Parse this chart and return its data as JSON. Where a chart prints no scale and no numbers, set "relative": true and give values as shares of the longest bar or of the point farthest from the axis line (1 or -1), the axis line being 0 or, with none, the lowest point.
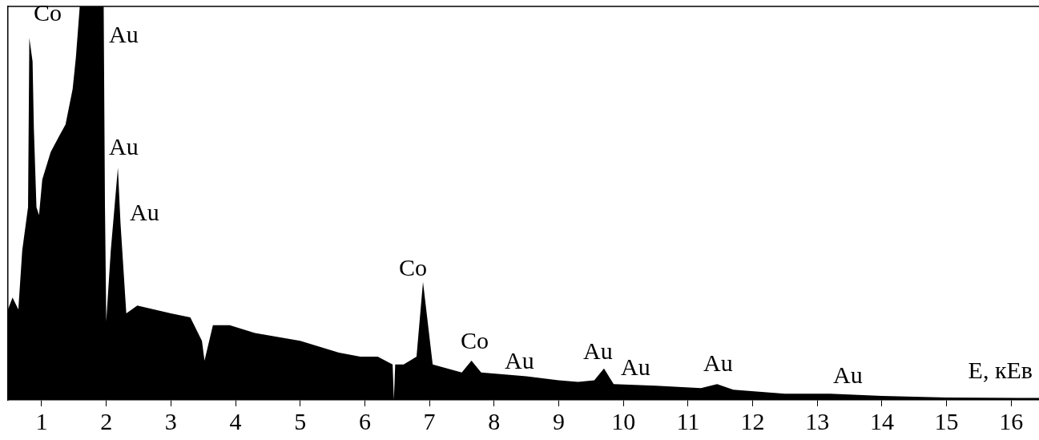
{
  "chart_data": {
    "type": "area",
    "relative": true,
    "xlabel": "E, кЕв",
    "x": [
      0.48,
      0.55,
      0.64,
      0.7,
      0.79,
      0.81,
      0.86,
      0.88,
      0.92,
      0.96,
      1.01,
      1.14,
      1.27,
      1.37,
      1.48,
      1.53,
      1.59,
      1.7,
      1.96,
      1.98,
      2.0,
      2.07,
      2.18,
      2.22,
      2.31,
      2.48,
      3.0,
      3.3,
      3.48,
      3.52,
      3.65,
      3.91,
      4.3,
      5.0,
      5.6,
      5.93,
      6.2,
      6.43,
      6.45,
      6.47,
      6.6,
      6.8,
      6.9,
      7.05,
      7.5,
      7.65,
      7.8,
      8.5,
      9.0,
      9.3,
      9.55,
      9.7,
      9.85,
      10.5,
      11.2,
      11.45,
      11.7,
      12.5,
      13.2,
      14.0,
      15.0,
      16.3,
      16.43
    ],
    "values": [
      0.23,
      0.26,
      0.23,
      0.38,
      0.49,
      0.92,
      0.86,
      0.69,
      0.49,
      0.47,
      0.56,
      0.63,
      0.67,
      0.7,
      0.79,
      0.87,
      1,
      1,
      1,
      0.49,
      0.2,
      0.38,
      0.59,
      0.45,
      0.22,
      0.24,
      0.22,
      0.21,
      0.15,
      0.1,
      0.19,
      0.19,
      0.17,
      0.15,
      0.12,
      0.11,
      0.11,
      0.09,
      0,
      0.09,
      0.09,
      0.11,
      0.3,
      0.09,
      0.07,
      0.1,
      0.07,
      0.06,
      0.05,
      0.046,
      0.05,
      0.08,
      0.04,
      0.036,
      0.03,
      0.04,
      0.026,
      0.016,
      0.016,
      0.01,
      0.006,
      0.005,
      0.005
    ],
    "color": "#000000",
    "xlim": [
      0.48,
      16.43
    ],
    "xticks": [
      1,
      2,
      3,
      4,
      5,
      6,
      7,
      8,
      9,
      10,
      11,
      12,
      13,
      14,
      15,
      16
    ],
    "annotations": [
      "Co",
      "Au",
      "Au",
      "Au",
      "Co",
      "Co",
      "Au",
      "Au",
      "Au",
      "Au",
      "Au"
    ],
    "grid": false,
    "legend": false
  }
}
